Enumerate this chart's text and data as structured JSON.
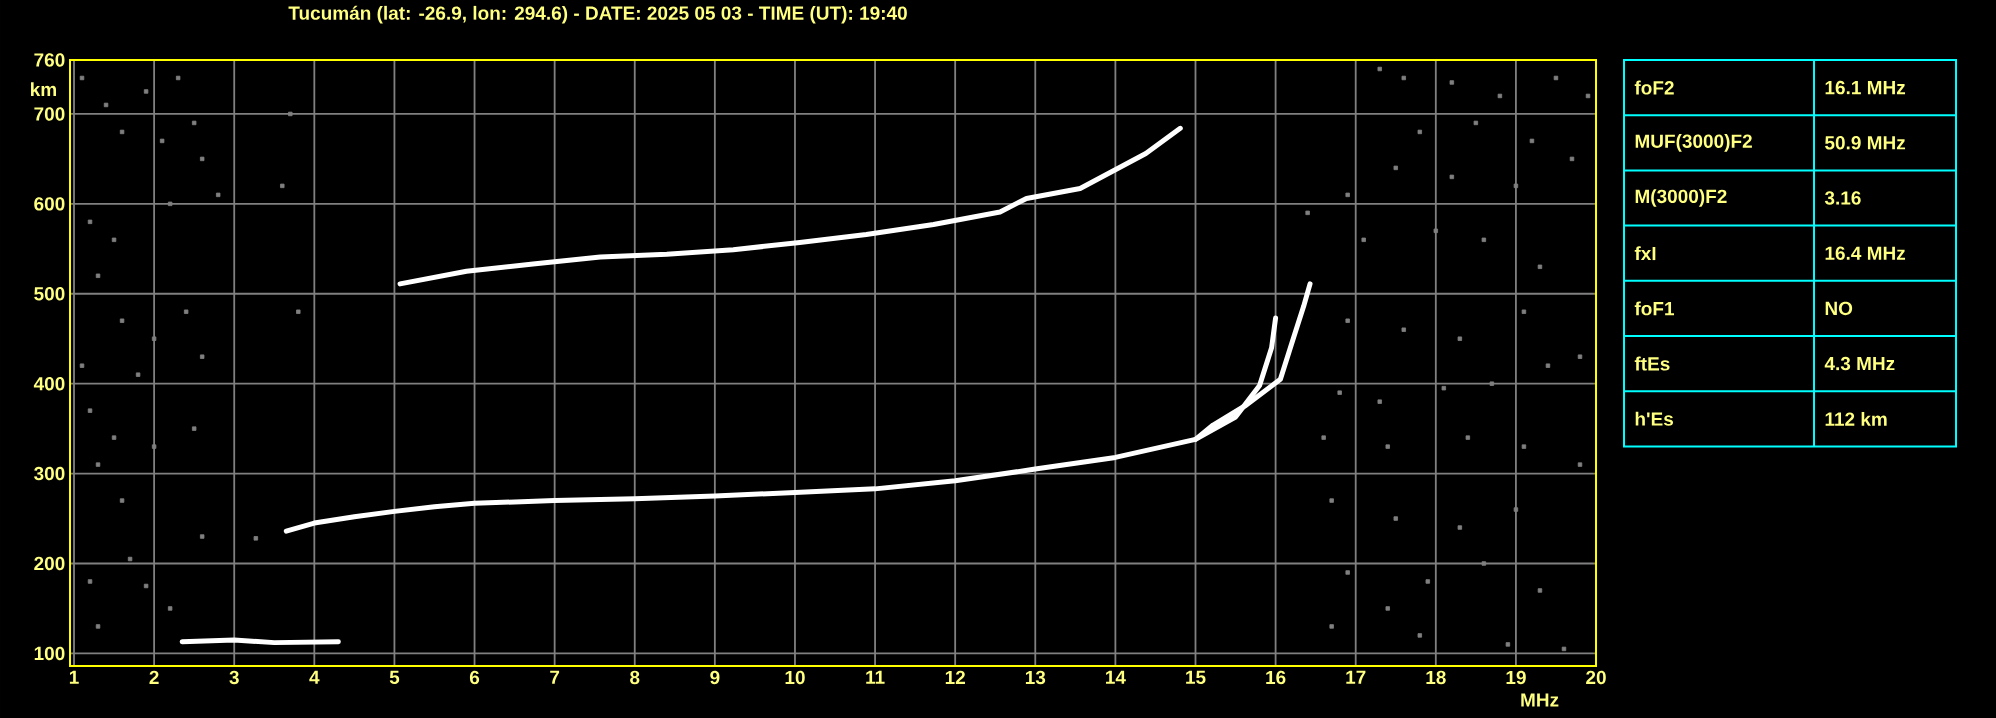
{
  "chart_data": [
    {
      "type": "line",
      "title": "Tucumán (lat: -26.9, lon: 294.6) - DATE: 2025 05 03 - TIME (UT): 19:40",
      "xlabel": "MHz",
      "ylabel": "km",
      "xlim": [
        0.95,
        20
      ],
      "ylim": [
        86,
        760
      ],
      "xticks": [
        1,
        2,
        3,
        4,
        5,
        6,
        7,
        8,
        9,
        10,
        11,
        12,
        13,
        14,
        15,
        16,
        17,
        18,
        19,
        20
      ],
      "yticks": [
        100,
        200,
        300,
        400,
        500,
        600,
        700,
        760
      ],
      "grid": true,
      "marker": "none",
      "series": [
        {
          "color": "#ffffff",
          "x": [
            3.65,
            4.0,
            4.5,
            5.0,
            5.5,
            6.0,
            7.0,
            8.0,
            9.0,
            10.0,
            11.0,
            12.0,
            13.0,
            14.0,
            15.0,
            15.5,
            15.8,
            15.95,
            16.0
          ],
          "values": [
            236,
            245,
            252,
            258,
            263,
            267,
            270,
            272,
            275,
            279,
            283,
            292,
            305,
            318,
            338,
            363,
            398,
            440,
            473
          ]
        },
        {
          "color": "#ffffff",
          "x": [
            15.0,
            15.22,
            15.63,
            16.06,
            16.22,
            16.35,
            16.43
          ],
          "values": [
            338,
            354,
            376,
            405,
            450,
            486,
            511
          ]
        },
        {
          "color": "#ffffff",
          "x": [
            5.07,
            5.9,
            6.73,
            7.57,
            8.4,
            9.23,
            10.06,
            10.89,
            11.73,
            12.56,
            12.89,
            13.56,
            14.38,
            14.81
          ],
          "values": [
            511,
            525,
            533,
            541,
            544,
            549,
            557,
            566,
            577,
            591,
            606,
            617,
            656,
            684
          ]
        },
        {
          "color": "#ffffff",
          "x": [
            2.35,
            3.0,
            3.5,
            4.3
          ],
          "values": [
            113,
            115,
            112,
            113
          ]
        },
        {
          "type": "scatter",
          "marker": "square",
          "color": "#808080",
          "x": [
            1.1,
            1.4,
            1.6,
            1.9,
            2.3,
            2.5,
            2.6,
            2.1,
            1.2,
            1.5,
            2.2,
            2.8,
            1.3,
            1.6,
            2.0,
            2.4,
            1.1,
            1.8,
            2.6,
            1.2,
            1.5,
            2.0,
            2.5,
            1.3,
            1.6,
            2.6,
            1.7,
            1.2,
            1.9,
            2.2,
            1.3,
            3.7,
            3.6,
            3.8,
            3.27,
            17.3,
            17.6,
            18.2,
            18.8,
            19.5,
            19.9,
            17.8,
            18.5,
            19.2,
            16.9,
            17.5,
            18.2,
            19.0,
            19.7,
            16.4,
            17.1,
            18.0,
            18.6,
            19.3,
            16.9,
            17.6,
            18.3,
            19.1,
            19.8,
            16.8,
            17.3,
            18.1,
            18.7,
            19.4,
            16.6,
            17.4,
            18.4,
            19.1,
            19.8,
            16.7,
            17.5,
            18.3,
            19.0,
            16.9,
            17.4,
            17.9,
            18.6,
            19.3,
            16.7,
            17.8,
            18.9,
            19.6
          ],
          "values": [
            740,
            710,
            680,
            725,
            740,
            690,
            650,
            670,
            580,
            560,
            600,
            610,
            520,
            470,
            450,
            480,
            420,
            410,
            430,
            370,
            340,
            330,
            350,
            310,
            270,
            230,
            205,
            180,
            175,
            150,
            130,
            700,
            620,
            480,
            228,
            750,
            740,
            735,
            720,
            740,
            720,
            680,
            690,
            670,
            610,
            640,
            630,
            620,
            650,
            590,
            560,
            570,
            560,
            530,
            470,
            460,
            450,
            480,
            430,
            390,
            380,
            395,
            400,
            420,
            340,
            330,
            340,
            330,
            310,
            270,
            250,
            240,
            260,
            190,
            150,
            180,
            200,
            170,
            130,
            120,
            110,
            105
          ]
        }
      ]
    },
    {
      "type": "other",
      "annotations": [
        "foF2",
        "16.1 MHz",
        "MUF(3000)F2",
        "50.9 MHz",
        "M(3000)F2",
        "3.16",
        "fxI",
        "16.4 MHz",
        "foF1",
        "NO",
        "ftEs",
        "4.3 MHz",
        "h'Es",
        "112 km"
      ]
    }
  ]
}
